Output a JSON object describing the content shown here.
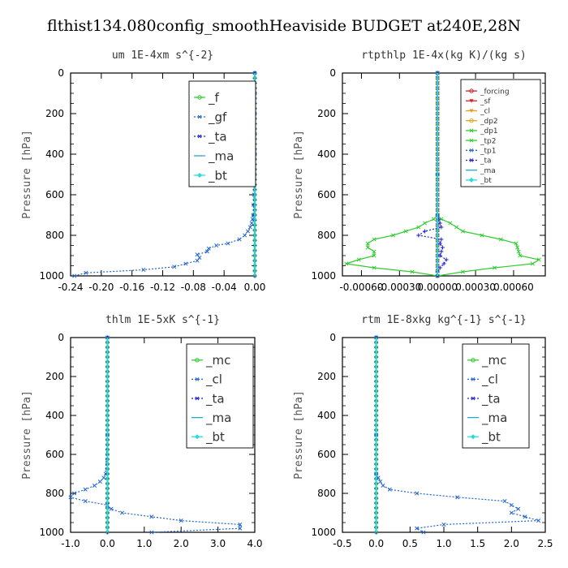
{
  "figure": {
    "title": "flthist134.080config_smoothHeaviside  BUDGET at240E,28N"
  },
  "chart_data": [
    {
      "type": "line",
      "title": "um   1E-4xm s^{-2}",
      "ylabel": "Pressure [hPa]",
      "xlim": [
        -0.24,
        0.0
      ],
      "ylim": [
        1000,
        0
      ],
      "xticks": [
        "-0.24",
        "-0.20",
        "-0.16",
        "-0.12",
        "-0.08",
        "-0.04",
        "0.00"
      ],
      "yticks": [
        "0",
        "200",
        "400",
        "600",
        "800",
        "1000"
      ],
      "legend_position": "top-right",
      "series": [
        {
          "name": "_f",
          "color": "#33cc33",
          "style": "solid",
          "marker": "o",
          "values": "zero"
        },
        {
          "name": "_gf",
          "color": "#2266cc",
          "style": "dotted",
          "marker": "*",
          "y": [
            1000,
            985,
            970,
            955,
            940,
            925,
            910,
            895,
            880,
            865,
            850,
            840,
            820,
            800,
            780,
            760,
            740,
            720,
            700,
            650,
            600,
            500,
            400,
            300,
            200,
            100,
            0
          ],
          "x": [
            -0.235,
            -0.22,
            -0.145,
            -0.105,
            -0.09,
            -0.075,
            -0.072,
            -0.075,
            -0.062,
            -0.06,
            -0.05,
            -0.035,
            -0.02,
            -0.013,
            -0.009,
            -0.006,
            -0.004,
            -0.003,
            -0.002,
            -0.0015,
            -0.001,
            -0.0005,
            0,
            0,
            0,
            0,
            0
          ]
        },
        {
          "name": "_ta",
          "color": "#2222cc",
          "style": "dotted",
          "marker": "+",
          "values": "zero"
        },
        {
          "name": "_ma",
          "color": "#22aacc",
          "style": "solid",
          "marker": "-",
          "values": "zero"
        },
        {
          "name": "_bt",
          "color": "#22dddd",
          "style": "solid",
          "marker": "◆",
          "values": "zero"
        }
      ]
    },
    {
      "type": "line",
      "title": "rtpthlp   1E-4x(kg K)/(kg s)",
      "ylabel": "Pressure [hPa]",
      "xlim": [
        -0.00075,
        0.00085
      ],
      "ylim": [
        1000,
        0
      ],
      "xticks": [
        "-0.00060",
        "-0.00030",
        "0.00000",
        "0.00030",
        "0.00060"
      ],
      "xtick_values": [
        -0.0006,
        -0.0003,
        0.0,
        0.0003,
        0.0006
      ],
      "yticks": [
        "0",
        "200",
        "400",
        "600",
        "800",
        "1000"
      ],
      "legend_position": "top-right",
      "series": [
        {
          "name": "_forcing",
          "color": "#cc2222",
          "style": "solid",
          "marker": "o",
          "values": "zero"
        },
        {
          "name": "_sf",
          "color": "#dd2222",
          "style": "solid",
          "marker": "▼",
          "values": "zero"
        },
        {
          "name": "_cl",
          "color": "#ee9922",
          "style": "solid",
          "marker": "▲",
          "values": "zero"
        },
        {
          "name": "_dp2",
          "color": "#ddaa22",
          "style": "solid",
          "marker": "o",
          "values": "zero"
        },
        {
          "name": "_dp1",
          "color": "#33cc33",
          "style": "solid",
          "marker": "x",
          "y": [
            0,
            500,
            700,
            720,
            740,
            760,
            780,
            800,
            820,
            840,
            860,
            880,
            900,
            920,
            940,
            960,
            980,
            1000
          ],
          "x": [
            0,
            0,
            0,
            3e-05,
            0.0001,
            0.00015,
            0.0002,
            0.00035,
            0.0005,
            0.00062,
            0.00063,
            0.00064,
            0.00065,
            0.0008,
            0.00075,
            0.00045,
            0.0002,
            0
          ]
        },
        {
          "name": "_tp2",
          "color": "#33cc33",
          "style": "solid",
          "marker": "x",
          "y": [
            0,
            500,
            700,
            720,
            740,
            760,
            780,
            800,
            820,
            840,
            860,
            880,
            900,
            920,
            940,
            960,
            980,
            1000
          ],
          "x": [
            0,
            0,
            0,
            -3e-05,
            -0.0001,
            -0.00015,
            -0.00025,
            -0.00035,
            -0.0005,
            -0.00055,
            -0.00055,
            -0.0005,
            -0.0005,
            -0.00062,
            -0.00072,
            -0.0005,
            -0.0002,
            0
          ]
        },
        {
          "name": "_tp1",
          "color": "#2266cc",
          "style": "dotted",
          "marker": "*",
          "values": "zero"
        },
        {
          "name": "_ta",
          "color": "#2222cc",
          "style": "dotted",
          "marker": "+",
          "y": [
            0,
            500,
            700,
            720,
            740,
            760,
            780,
            800,
            820,
            840,
            860,
            880,
            900,
            920,
            940,
            960,
            980,
            1000
          ],
          "x": [
            0,
            0,
            0,
            1e-05,
            2e-05,
            3e-05,
            -0.0001,
            -0.00015,
            3e-05,
            2e-05,
            4e-05,
            3e-05,
            2e-05,
            7e-05,
            5e-05,
            2e-05,
            0,
            0
          ]
        },
        {
          "name": "_ma",
          "color": "#22aacc",
          "style": "solid",
          "marker": "-",
          "values": "zero"
        },
        {
          "name": "_bt",
          "color": "#22dddd",
          "style": "solid",
          "marker": "◆",
          "values": "zero"
        }
      ]
    },
    {
      "type": "line",
      "title": "thlm   1E-5xK s^{-1}",
      "ylabel": "Pressure [hPa]",
      "xlim": [
        -1.0,
        4.0
      ],
      "ylim": [
        1000,
        0
      ],
      "xticks": [
        "-1.0",
        "0.0",
        "1.0",
        "2.0",
        "3.0",
        "4.0"
      ],
      "xtick_values": [
        -1,
        0,
        1,
        2,
        3,
        4
      ],
      "yticks": [
        "0",
        "200",
        "400",
        "600",
        "800",
        "1000"
      ],
      "legend_position": "top-right",
      "series": [
        {
          "name": "_mc",
          "color": "#33cc33",
          "style": "solid",
          "marker": "o",
          "values": "zero"
        },
        {
          "name": "_cl",
          "color": "#2266cc",
          "style": "dotted",
          "marker": "*",
          "y": [
            0,
            500,
            700,
            720,
            740,
            760,
            780,
            800,
            820,
            840,
            860,
            880,
            900,
            920,
            940,
            960,
            980,
            1000
          ],
          "x": [
            0,
            0,
            -0.05,
            -0.1,
            -0.2,
            -0.35,
            -0.6,
            -0.9,
            -1.0,
            -0.6,
            0,
            0.1,
            0.4,
            1.2,
            2.0,
            3.6,
            3.6,
            1.2
          ]
        },
        {
          "name": "_ta",
          "color": "#2222cc",
          "style": "dotted",
          "marker": "+",
          "values": "zero"
        },
        {
          "name": "_ma",
          "color": "#22aacc",
          "style": "solid",
          "marker": "-",
          "values": "zero"
        },
        {
          "name": "_bt",
          "color": "#22dddd",
          "style": "solid",
          "marker": "◆",
          "values": "zero"
        }
      ]
    },
    {
      "type": "line",
      "title": "rtm   1E-8xkg kg^{-1} s^{-1}",
      "ylabel": "Pressure [hPa]",
      "xlim": [
        -0.5,
        2.5
      ],
      "ylim": [
        1000,
        0
      ],
      "xticks": [
        "-0.5",
        "0.0",
        "0.5",
        "1.0",
        "1.5",
        "2.0",
        "2.5"
      ],
      "xtick_values": [
        -0.5,
        0,
        0.5,
        1.0,
        1.5,
        2.0,
        2.5
      ],
      "yticks": [
        "0",
        "200",
        "400",
        "600",
        "800",
        "1000"
      ],
      "legend_position": "top-right",
      "series": [
        {
          "name": "_mc",
          "color": "#33cc33",
          "style": "solid",
          "marker": "o",
          "values": "zero"
        },
        {
          "name": "_cl",
          "color": "#2266cc",
          "style": "dotted",
          "marker": "*",
          "y": [
            0,
            500,
            700,
            720,
            740,
            760,
            780,
            800,
            820,
            840,
            860,
            880,
            900,
            920,
            940,
            960,
            980,
            1000
          ],
          "x": [
            0,
            0,
            0,
            0.03,
            0.06,
            0.1,
            0.2,
            0.6,
            1.2,
            1.9,
            2.0,
            2.1,
            2.0,
            2.2,
            2.4,
            1.0,
            0.6,
            0.7
          ]
        },
        {
          "name": "_ta",
          "color": "#2222cc",
          "style": "dotted",
          "marker": "+",
          "values": "zero"
        },
        {
          "name": "_ma",
          "color": "#22aacc",
          "style": "solid",
          "marker": "-",
          "values": "zero"
        },
        {
          "name": "_bt",
          "color": "#22dddd",
          "style": "solid",
          "marker": "◆",
          "values": "zero"
        }
      ]
    }
  ]
}
